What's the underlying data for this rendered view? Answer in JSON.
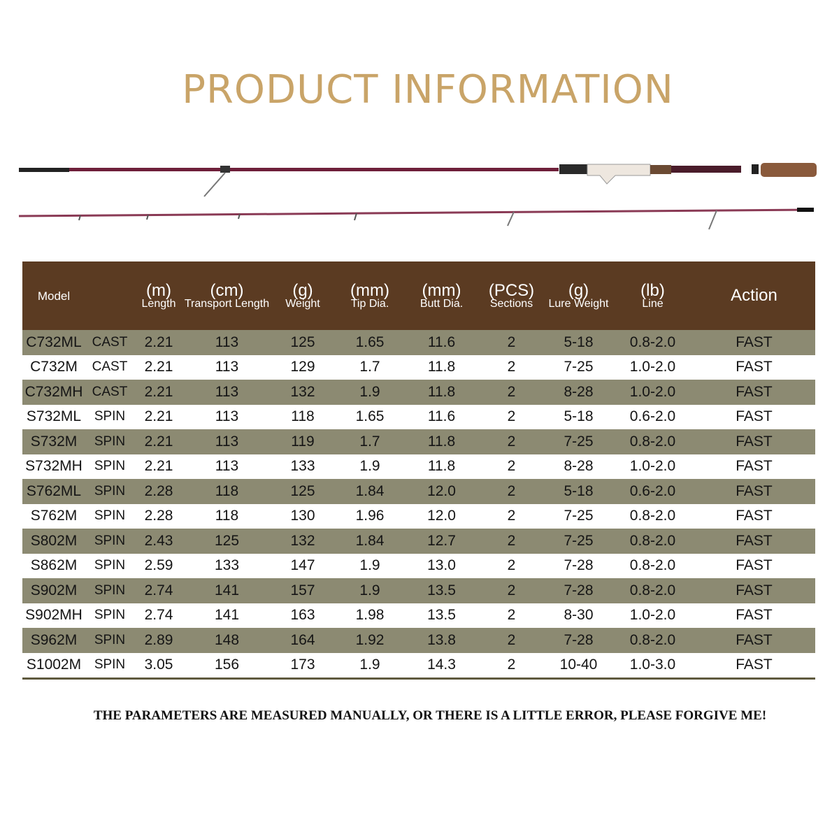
{
  "title": "PRODUCT INFORMATION",
  "table": {
    "headers": [
      {
        "unit": "",
        "label": "Model"
      },
      {
        "unit": "",
        "label": ""
      },
      {
        "unit": "(m)",
        "label": "Length"
      },
      {
        "unit": "(cm)",
        "label": "Transport Length"
      },
      {
        "unit": "(g)",
        "label": "Weight"
      },
      {
        "unit": "(mm)",
        "label": "Tip Dia."
      },
      {
        "unit": "(mm)",
        "label": "Butt Dia."
      },
      {
        "unit": "(PCS)",
        "label": "Sections"
      },
      {
        "unit": "(g)",
        "label": "Lure Weight"
      },
      {
        "unit": "(lb)",
        "label": "Line"
      },
      {
        "unit": "",
        "label": "Action"
      }
    ],
    "rows": [
      [
        "C732ML",
        "CAST",
        "2.21",
        "113",
        "125",
        "1.65",
        "11.6",
        "2",
        "5-18",
        "0.8-2.0",
        "FAST"
      ],
      [
        "C732M",
        "CAST",
        "2.21",
        "113",
        "129",
        "1.7",
        "11.8",
        "2",
        "7-25",
        "1.0-2.0",
        "FAST"
      ],
      [
        "C732MH",
        "CAST",
        "2.21",
        "113",
        "132",
        "1.9",
        "11.8",
        "2",
        "8-28",
        "1.0-2.0",
        "FAST"
      ],
      [
        "S732ML",
        "SPIN",
        "2.21",
        "113",
        "118",
        "1.65",
        "11.6",
        "2",
        "5-18",
        "0.6-2.0",
        "FAST"
      ],
      [
        "S732M",
        "SPIN",
        "2.21",
        "113",
        "119",
        "1.7",
        "11.8",
        "2",
        "7-25",
        "0.8-2.0",
        "FAST"
      ],
      [
        "S732MH",
        "SPIN",
        "2.21",
        "113",
        "133",
        "1.9",
        "11.8",
        "2",
        "8-28",
        "1.0-2.0",
        "FAST"
      ],
      [
        "S762ML",
        "SPIN",
        "2.28",
        "118",
        "125",
        "1.84",
        "12.0",
        "2",
        "5-18",
        "0.6-2.0",
        "FAST"
      ],
      [
        "S762M",
        "SPIN",
        "2.28",
        "118",
        "130",
        "1.96",
        "12.0",
        "2",
        "7-25",
        "0.8-2.0",
        "FAST"
      ],
      [
        "S802M",
        "SPIN",
        "2.43",
        "125",
        "132",
        "1.84",
        "12.7",
        "2",
        "7-25",
        "0.8-2.0",
        "FAST"
      ],
      [
        "S862M",
        "SPIN",
        "2.59",
        "133",
        "147",
        "1.9",
        "13.0",
        "2",
        "7-28",
        "0.8-2.0",
        "FAST"
      ],
      [
        "S902M",
        "SPIN",
        "2.74",
        "141",
        "157",
        "1.9",
        "13.5",
        "2",
        "7-28",
        "0.8-2.0",
        "FAST"
      ],
      [
        "S902MH",
        "SPIN",
        "2.74",
        "141",
        "163",
        "1.98",
        "13.5",
        "2",
        "8-30",
        "1.0-2.0",
        "FAST"
      ],
      [
        "S962M",
        "SPIN",
        "2.89",
        "148",
        "164",
        "1.92",
        "13.8",
        "2",
        "7-28",
        "0.8-2.0",
        "FAST"
      ],
      [
        "S1002M",
        "SPIN",
        "3.05",
        "156",
        "173",
        "1.9",
        "14.3",
        "2",
        "10-40",
        "1.0-3.0",
        "FAST"
      ]
    ]
  },
  "footer": "THE PARAMETERS ARE MEASURED MANUALLY, OR THERE IS A LITTLE ERROR, PLEASE FORGIVE ME!",
  "colors": {
    "title": "#c9a468",
    "header_bg": "#5b3b22",
    "row_alt": "#8c8a72",
    "rod": "#6e1f3a"
  }
}
